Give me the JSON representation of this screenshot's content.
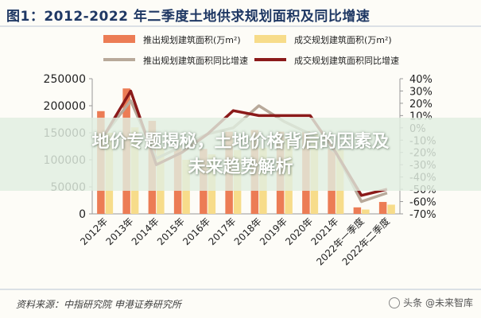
{
  "figure_title": "图1：2012-2022 年二季度土地供求规划面积及同比增速",
  "overlay_headline": [
    "地价专题揭秘，土地价格背后的因素及",
    "未来趋势解析"
  ],
  "source_note": "资料来源：中指研究院 申港证券研究所",
  "watermark": "头条 @未来智库",
  "chart_data": {
    "type": "bar",
    "categories": [
      "2012年",
      "2013年",
      "2014年",
      "2015年",
      "2016年",
      "2017年",
      "2018年",
      "2019年",
      "2020年",
      "2021年",
      "2022年一季度",
      "2022年二季度"
    ],
    "series": [
      {
        "name": "推出规划建筑面积(万m²)",
        "type": "bar",
        "axis": "left",
        "color": "#ec7c55",
        "values": [
          190000,
          232000,
          172000,
          125000,
          120000,
          152000,
          155000,
          152000,
          153000,
          122000,
          12000,
          22000
        ]
      },
      {
        "name": "成交规划建筑面积(万m²)",
        "type": "bar",
        "axis": "left",
        "color": "#f7dc8a",
        "values": [
          150000,
          160000,
          122000,
          100000,
          110000,
          118000,
          122000,
          140000,
          148000,
          118000,
          8000,
          17000
        ]
      },
      {
        "name": "推出规划建筑面积同比增速",
        "type": "line",
        "axis": "right",
        "color": "#b8a99a",
        "values": [
          -5,
          22,
          -25,
          -15,
          -5,
          0,
          18,
          5,
          -5,
          -20,
          -60,
          -53
        ]
      },
      {
        "name": "成交规划建筑面积同比增速",
        "type": "line",
        "axis": "right",
        "color": "#8b1a1a",
        "values": [
          -5,
          30,
          -30,
          -20,
          -5,
          14,
          10,
          10,
          10,
          -20,
          -55,
          -50
        ]
      }
    ],
    "left_axis": {
      "ylim": [
        0,
        250000
      ],
      "ticks": [
        "0",
        "50000",
        "100000",
        "150000",
        "200000",
        "250000"
      ]
    },
    "right_axis": {
      "ylim": [
        -70,
        40
      ],
      "ticks": [
        "40%",
        "30%",
        "20%",
        "10%",
        "0%",
        "-10%",
        "-20%",
        "-30%",
        "-40%",
        "-50%",
        "-60%",
        "-70%"
      ]
    },
    "grid": false,
    "legend_position": "top"
  },
  "colors": {
    "title": "#1f3864",
    "overlay_text": "#ffffff"
  }
}
